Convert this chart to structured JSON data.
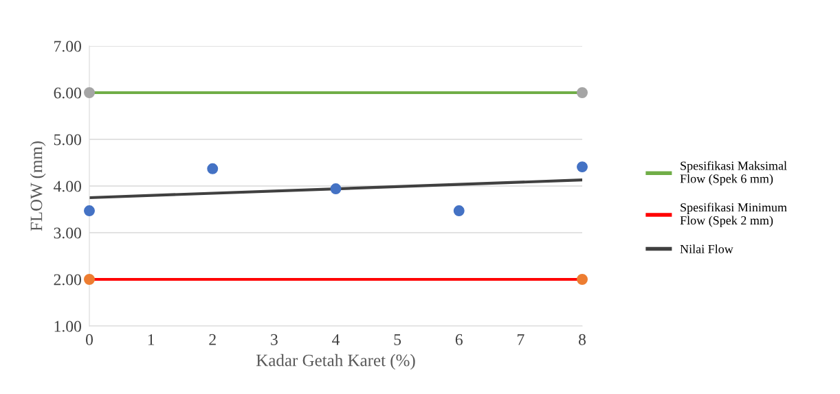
{
  "chart_data": {
    "type": "scatter",
    "xlabel": "Kadar Getah Karet (%)",
    "ylabel": "FLOW (mm)",
    "xlim": [
      0,
      8
    ],
    "xticks": [
      0,
      1,
      2,
      3,
      4,
      5,
      6,
      7,
      8
    ],
    "ylim": [
      1,
      7
    ],
    "yticks": [
      {
        "value": 1,
        "label": "1.00"
      },
      {
        "value": 2,
        "label": "2.00"
      },
      {
        "value": 3,
        "label": "3.00"
      },
      {
        "value": 4,
        "label": "4.00"
      },
      {
        "value": 5,
        "label": "5.00"
      },
      {
        "value": 6,
        "label": "6.00"
      },
      {
        "value": 7,
        "label": "7.00"
      }
    ],
    "grid": "y",
    "legend": "right",
    "marker": "circle",
    "series": [
      {
        "type": "line",
        "name": "Spesifikasi Maksimal\nFlow (Spek 6 mm)",
        "color": "#70ad47",
        "x": [
          0,
          8
        ],
        "values": [
          6,
          6
        ],
        "marker": "none"
      },
      {
        "color": "#a5a5a5",
        "x": [
          0,
          8
        ],
        "values": [
          6,
          6
        ]
      },
      {
        "type": "line",
        "name": "Spesifikasi Minimum\nFlow (Spek 2 mm)",
        "color": "#ff0000",
        "x": [
          0,
          8
        ],
        "values": [
          2,
          2
        ],
        "marker": "none"
      },
      {
        "color": "#ed7d31",
        "x": [
          0,
          8
        ],
        "values": [
          2,
          2
        ]
      },
      {
        "color": "#4472c4",
        "x": [
          0,
          2,
          4,
          6,
          8
        ],
        "values": [
          3.47,
          4.37,
          3.94,
          3.47,
          4.41
        ]
      },
      {
        "type": "line",
        "name": "Nilai Flow",
        "color": "#404040",
        "x": [
          0,
          8
        ],
        "values": [
          3.75,
          4.13
        ],
        "marker": "none"
      }
    ]
  }
}
